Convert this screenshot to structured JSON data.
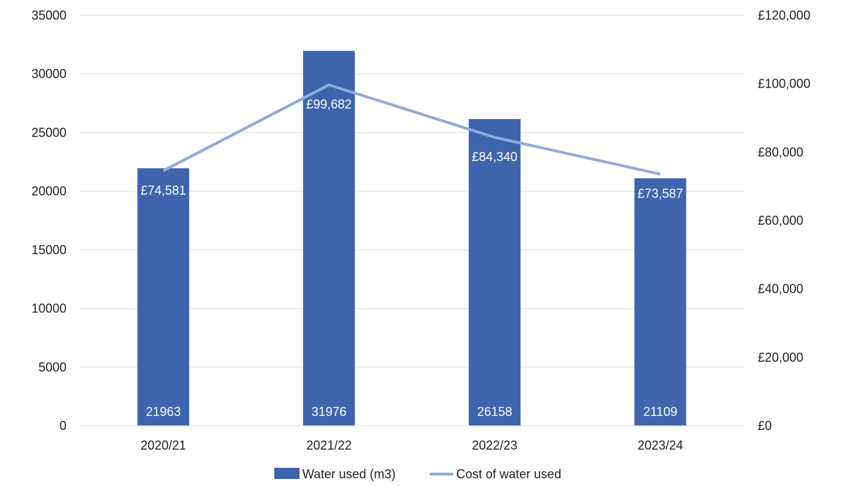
{
  "chart_data": {
    "type": "bar",
    "categories": [
      "2020/21",
      "2021/22",
      "2022/23",
      "2023/24"
    ],
    "series": [
      {
        "name": "Water used (m3)",
        "kind": "bar",
        "axis": "left",
        "color": "#3d64ad",
        "values": [
          21963,
          31976,
          26158,
          21109
        ],
        "labels": [
          "21963",
          "31976",
          "26158",
          "21109"
        ]
      },
      {
        "name": "Cost of water used",
        "kind": "line",
        "axis": "right",
        "color": "#8faadc",
        "values": [
          74581,
          99682,
          84340,
          73587
        ],
        "labels": [
          "£74,581",
          "£99,682",
          "£84,340",
          "£73,587"
        ]
      }
    ],
    "y_left": {
      "ylim": [
        0,
        35000
      ],
      "ticks": [
        "0",
        "5000",
        "10000",
        "15000",
        "20000",
        "25000",
        "30000",
        "35000"
      ]
    },
    "y_right": {
      "ylim": [
        0,
        120000
      ],
      "ticks": [
        "£0",
        "£20,000",
        "£40,000",
        "£60,000",
        "£80,000",
        "£100,000",
        "£120,000"
      ]
    },
    "grid": true,
    "legend": "bottom"
  }
}
